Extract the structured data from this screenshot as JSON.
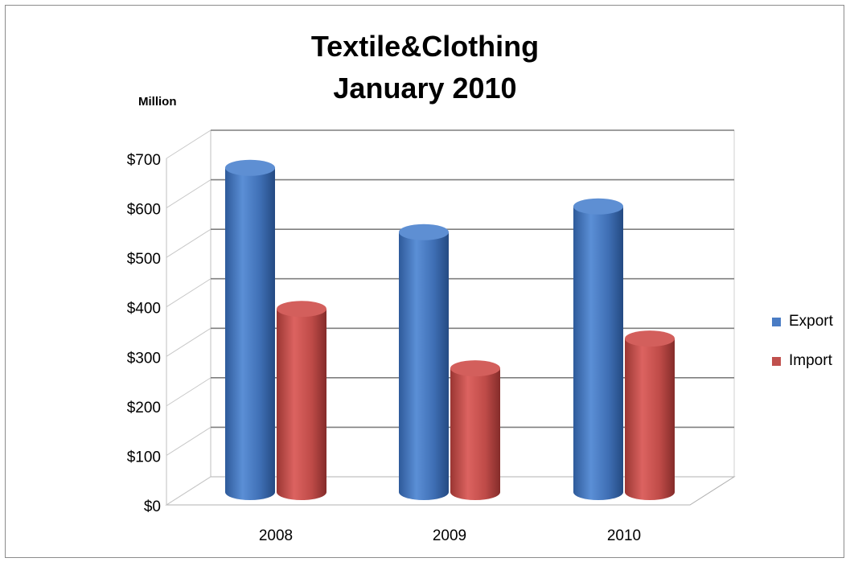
{
  "chart_data": {
    "type": "bar",
    "title_lines": [
      "Textile&Clothing",
      "January 2010"
    ],
    "unit_label": "Million",
    "categories": [
      "2008",
      "2009",
      "2010"
    ],
    "series": [
      {
        "name": "Export",
        "color": "#4a7cc4",
        "values": [
          655,
          525,
          577
        ]
      },
      {
        "name": "Import",
        "color": "#c0504d",
        "values": [
          370,
          250,
          310
        ]
      }
    ],
    "ylim": [
      0,
      700
    ],
    "yticks": [
      0,
      100,
      200,
      300,
      400,
      500,
      600,
      700
    ],
    "ytick_labels": [
      "$0",
      "$100",
      "$200",
      "$300",
      "$400",
      "$500",
      "$600",
      "$700"
    ],
    "grid": true,
    "legend_position": "right",
    "style": "3d-cylinder"
  }
}
